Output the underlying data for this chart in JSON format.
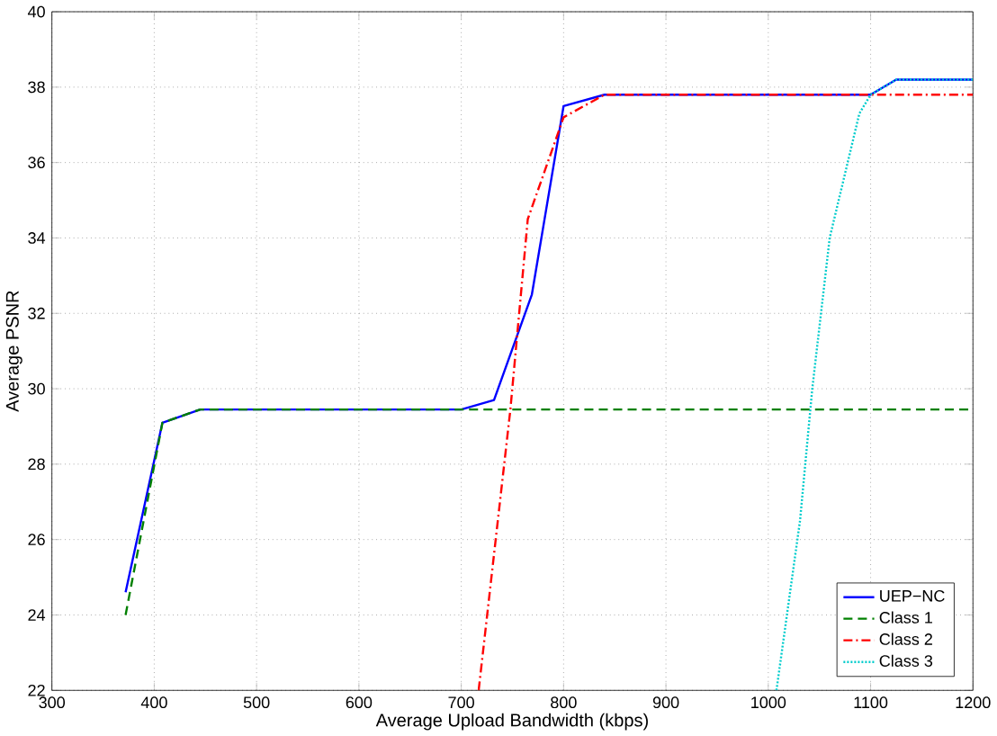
{
  "chart_data": {
    "type": "line",
    "xlabel": "Average Upload Bandwidth (kbps)",
    "ylabel": "Average PSNR",
    "xlim": [
      300,
      1200
    ],
    "ylim": [
      22,
      40
    ],
    "xticks": [
      300,
      400,
      500,
      600,
      700,
      800,
      900,
      1000,
      1100,
      1200
    ],
    "yticks": [
      22,
      24,
      26,
      28,
      30,
      32,
      34,
      36,
      38,
      40
    ],
    "grid": true,
    "legend": "bottom right",
    "series": [
      {
        "name": "UEP−NC",
        "color": "#0000ff",
        "line_style": "solid",
        "x": [
          372,
          408,
          445,
          700,
          732,
          769,
          800,
          840,
          1100,
          1125,
          1200
        ],
        "values": [
          24.6,
          29.1,
          29.45,
          29.45,
          29.7,
          32.5,
          37.5,
          37.8,
          37.8,
          38.2,
          38.2
        ]
      },
      {
        "name": "Class 1",
        "color": "#008000",
        "line_style": "dashed",
        "x": [
          372,
          408,
          445,
          700,
          1200
        ],
        "values": [
          24.0,
          29.1,
          29.45,
          29.45,
          29.45
        ]
      },
      {
        "name": "Class 2",
        "color": "#ff0000",
        "line_style": "dashdot",
        "x": [
          717,
          748,
          765,
          800,
          840,
          1200
        ],
        "values": [
          22,
          29.45,
          34.5,
          37.2,
          37.8,
          37.8
        ]
      },
      {
        "name": "Class 3",
        "color": "#00cccc",
        "line_style": "dotted",
        "x": [
          1008,
          1031,
          1043,
          1060,
          1089,
          1100,
          1125,
          1200
        ],
        "values": [
          22,
          26.5,
          30.0,
          34.0,
          37.3,
          37.8,
          38.2,
          38.2
        ]
      }
    ]
  }
}
